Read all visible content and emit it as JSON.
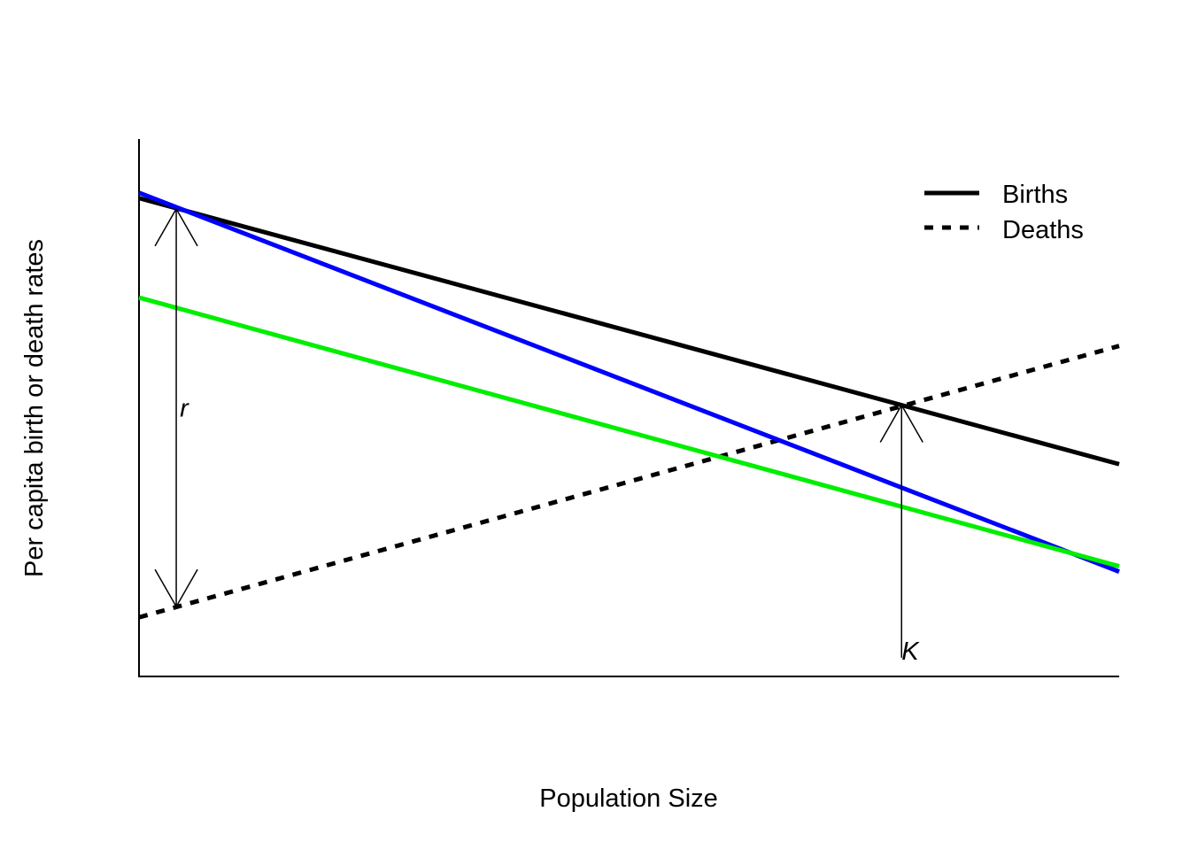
{
  "chart_data": {
    "type": "line",
    "xlabel": "Population Size",
    "ylabel": "Per capita birth or death rates",
    "xlim": [
      0,
      100
    ],
    "ylim": [
      0,
      100
    ],
    "axes": {
      "x_ticks": false,
      "y_ticks": false,
      "grid": false
    },
    "series": [
      {
        "name": "Births",
        "style": "solid",
        "color": "#000000",
        "x": [
          0,
          100
        ],
        "y": [
          89,
          39.5
        ]
      },
      {
        "name": "Deaths",
        "style": "dashed",
        "color": "#000000",
        "x": [
          0,
          100
        ],
        "y": [
          11,
          61.5
        ]
      },
      {
        "style": "solid",
        "color": "#0000ff",
        "x": [
          0,
          100
        ],
        "y": [
          90,
          19.5
        ]
      },
      {
        "style": "solid",
        "color": "#00ee00",
        "x": [
          0,
          100
        ],
        "y": [
          70.5,
          20.5
        ]
      }
    ],
    "legend": {
      "position": "top-right",
      "entries": [
        {
          "label": "Births",
          "style": "solid",
          "color": "#000000"
        },
        {
          "label": "Deaths",
          "style": "dashed",
          "color": "#000000"
        }
      ]
    },
    "annotations": [
      {
        "label": "r",
        "type": "double-arrow",
        "x": 3.8,
        "y_from": 13.0,
        "y_to": 87.0,
        "label_y": 50
      },
      {
        "label": "K",
        "type": "arrow",
        "x": 77.8,
        "y_from": 3.5,
        "y_to": 50.5,
        "label_y": 3.5
      }
    ]
  }
}
